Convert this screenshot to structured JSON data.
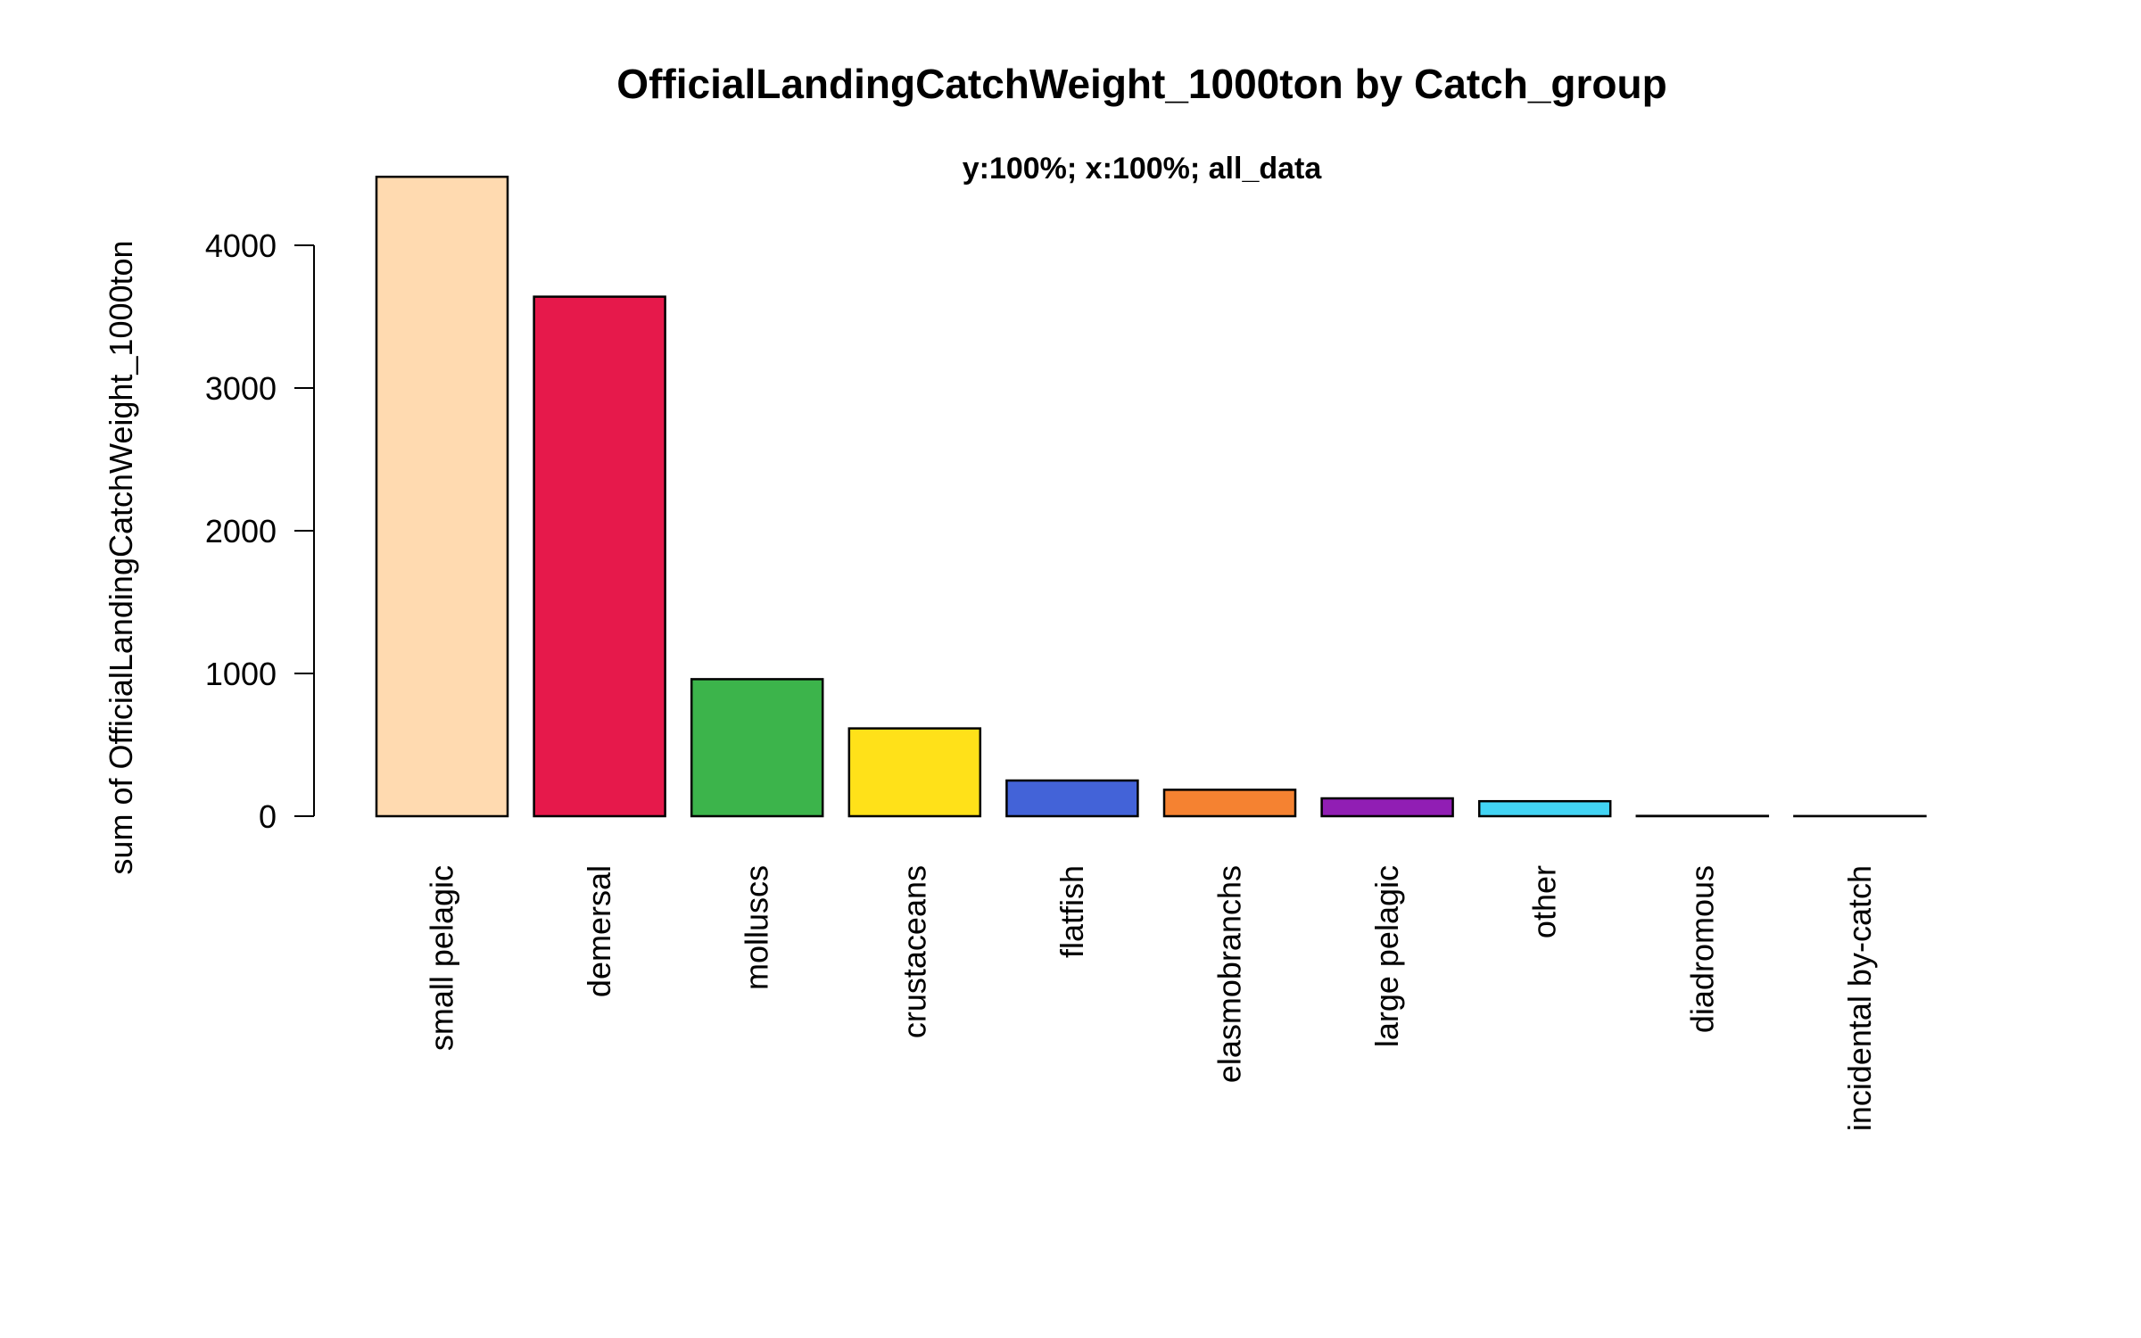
{
  "chart_data": {
    "type": "bar",
    "title": "OfficialLandingCatchWeight_1000ton by Catch_group",
    "subtitle": "y:100%; x:100%; all_data",
    "xlabel": "",
    "ylabel": "sum of OfficialLandingCatchWeight_1000ton",
    "ylim": [
      0,
      4500
    ],
    "yticks": [
      0,
      1000,
      2000,
      3000,
      4000
    ],
    "ytick_labels": [
      "0",
      "1000",
      "2000",
      "3000",
      "4000"
    ],
    "grid": false,
    "legend": "none",
    "categories": [
      "small pelagic",
      "demersal",
      "molluscs",
      "crustaceans",
      "flatfish",
      "elasmobranchs",
      "large pelagic",
      "other",
      "diadromous",
      "incidental by-catch"
    ],
    "values": [
      4480,
      3640,
      960,
      615,
      250,
      185,
      125,
      105,
      2,
      1
    ],
    "colors": [
      "#FFDAB0",
      "#E6194B",
      "#3CB44B",
      "#FFE119",
      "#4363D8",
      "#F58231",
      "#911EB4",
      "#42D4F4",
      "#F032E6",
      "#BFEF45"
    ]
  }
}
